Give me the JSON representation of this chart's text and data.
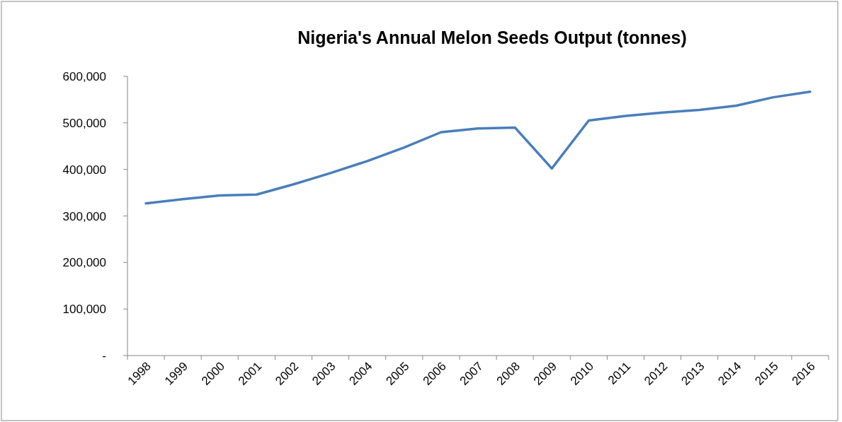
{
  "chart_data": {
    "type": "line",
    "title": "Nigeria's Annual Melon Seeds Output (tonnes)",
    "categories": [
      "1998",
      "1999",
      "2000",
      "2001",
      "2002",
      "2003",
      "2004",
      "2005",
      "2006",
      "2007",
      "2008",
      "2009",
      "2010",
      "2011",
      "2012",
      "2013",
      "2014",
      "2015",
      "2016"
    ],
    "series": [
      {
        "color": "#4a7ebb",
        "values": [
          327000,
          336000,
          344000,
          346000,
          368000,
          392000,
          418000,
          447000,
          480000,
          488000,
          490000,
          402000,
          505000,
          515000,
          522000,
          528000,
          537000,
          555000,
          567000
        ]
      }
    ],
    "ylim": [
      0,
      600000
    ],
    "yticks": [
      {
        "value": 0,
        "label": "-"
      },
      {
        "value": 100000,
        "label": "100,000"
      },
      {
        "value": 200000,
        "label": "200,000"
      },
      {
        "value": 300000,
        "label": "300,000"
      },
      {
        "value": 400000,
        "label": "400,000"
      },
      {
        "value": 500000,
        "label": "500,000"
      },
      {
        "value": 600000,
        "label": "600,000"
      }
    ],
    "marker": "none",
    "line_style": "solid"
  }
}
